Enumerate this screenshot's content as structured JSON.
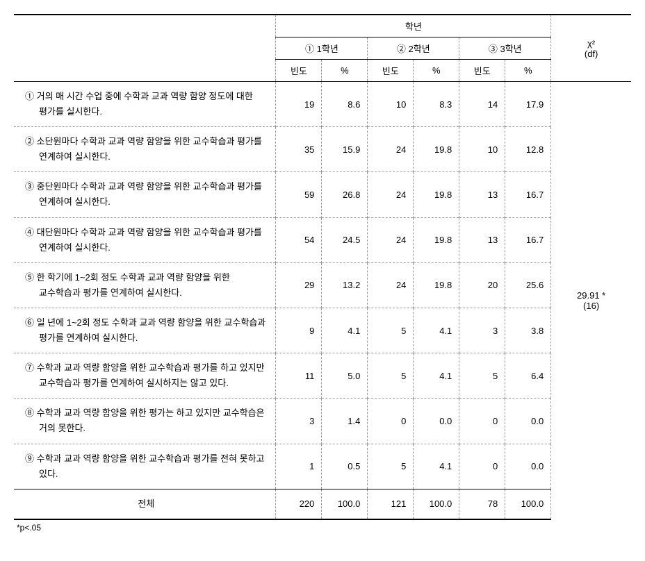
{
  "header": {
    "group_label": "학년",
    "grades": [
      {
        "label": "① 1학년"
      },
      {
        "label": "② 2학년"
      },
      {
        "label": "③ 3학년"
      }
    ],
    "freq_label": "빈도",
    "pct_label": "%",
    "chi_label": "χ²",
    "df_label": "(df)"
  },
  "rows": [
    {
      "label": "① 거의 매 시간 수업 중에 수학과 교과 역량 함양 정도에 대한 평가를 실시한다.",
      "g1_freq": "19",
      "g1_pct": "8.6",
      "g2_freq": "10",
      "g2_pct": "8.3",
      "g3_freq": "14",
      "g3_pct": "17.9"
    },
    {
      "label": "② 소단원마다 수학과 교과 역량 함양을 위한 교수학습과 평가를 연계하여 실시한다.",
      "g1_freq": "35",
      "g1_pct": "15.9",
      "g2_freq": "24",
      "g2_pct": "19.8",
      "g3_freq": "10",
      "g3_pct": "12.8"
    },
    {
      "label": "③ 중단원마다 수학과 교과 역량 함양을 위한 교수학습과 평가를 연계하여 실시한다.",
      "g1_freq": "59",
      "g1_pct": "26.8",
      "g2_freq": "24",
      "g2_pct": "19.8",
      "g3_freq": "13",
      "g3_pct": "16.7"
    },
    {
      "label": "④ 대단원마다 수학과 교과 역량 함양을 위한 교수학습과 평가를 연계하여 실시한다.",
      "g1_freq": "54",
      "g1_pct": "24.5",
      "g2_freq": "24",
      "g2_pct": "19.8",
      "g3_freq": "13",
      "g3_pct": "16.7"
    },
    {
      "label": "⑤ 한 학기에 1~2회 정도 수학과 교과 역량 함양을 위한 교수학습과 평가를 연계하여 실시한다.",
      "g1_freq": "29",
      "g1_pct": "13.2",
      "g2_freq": "24",
      "g2_pct": "19.8",
      "g3_freq": "20",
      "g3_pct": "25.6"
    },
    {
      "label": "⑥ 일 년에 1~2회 정도 수학과 교과 역량 함양을 위한 교수학습과 평가를 연계하여 실시한다.",
      "g1_freq": "9",
      "g1_pct": "4.1",
      "g2_freq": "5",
      "g2_pct": "4.1",
      "g3_freq": "3",
      "g3_pct": "3.8"
    },
    {
      "label": "⑦ 수학과 교과 역량 함양을 위한 교수학습과 평가를 하고 있지만 교수학습과 평가를 연계하여 실시하지는 않고 있다.",
      "g1_freq": "11",
      "g1_pct": "5.0",
      "g2_freq": "5",
      "g2_pct": "4.1",
      "g3_freq": "5",
      "g3_pct": "6.4"
    },
    {
      "label": "⑧ 수학과 교과 역량 함양을 위한 평가는 하고 있지만 교수학습은 거의 못한다.",
      "g1_freq": "3",
      "g1_pct": "1.4",
      "g2_freq": "0",
      "g2_pct": "0.0",
      "g3_freq": "0",
      "g3_pct": "0.0"
    },
    {
      "label": "⑨ 수학과 교과 역량 함양을 위한 교수학습과 평가를 전혀 못하고 있다.",
      "g1_freq": "1",
      "g1_pct": "0.5",
      "g2_freq": "5",
      "g2_pct": "4.1",
      "g3_freq": "0",
      "g3_pct": "0.0"
    }
  ],
  "total": {
    "label": "전체",
    "g1_freq": "220",
    "g1_pct": "100.0",
    "g2_freq": "121",
    "g2_pct": "100.0",
    "g3_freq": "78",
    "g3_pct": "100.0"
  },
  "chi_square": {
    "value": "29.91 *",
    "df": "(16)"
  },
  "footnote": "*p<.05",
  "style": {
    "font_family": "Malgun Gothic",
    "base_fontsize": 13,
    "text_color": "#000000",
    "background_color": "#ffffff",
    "solid_border_color": "#000000",
    "dashed_border_color": "#999999",
    "col_widths": {
      "label": 360,
      "freq": 63,
      "pct": 63,
      "chi": 110
    },
    "line_height": 1.7
  }
}
